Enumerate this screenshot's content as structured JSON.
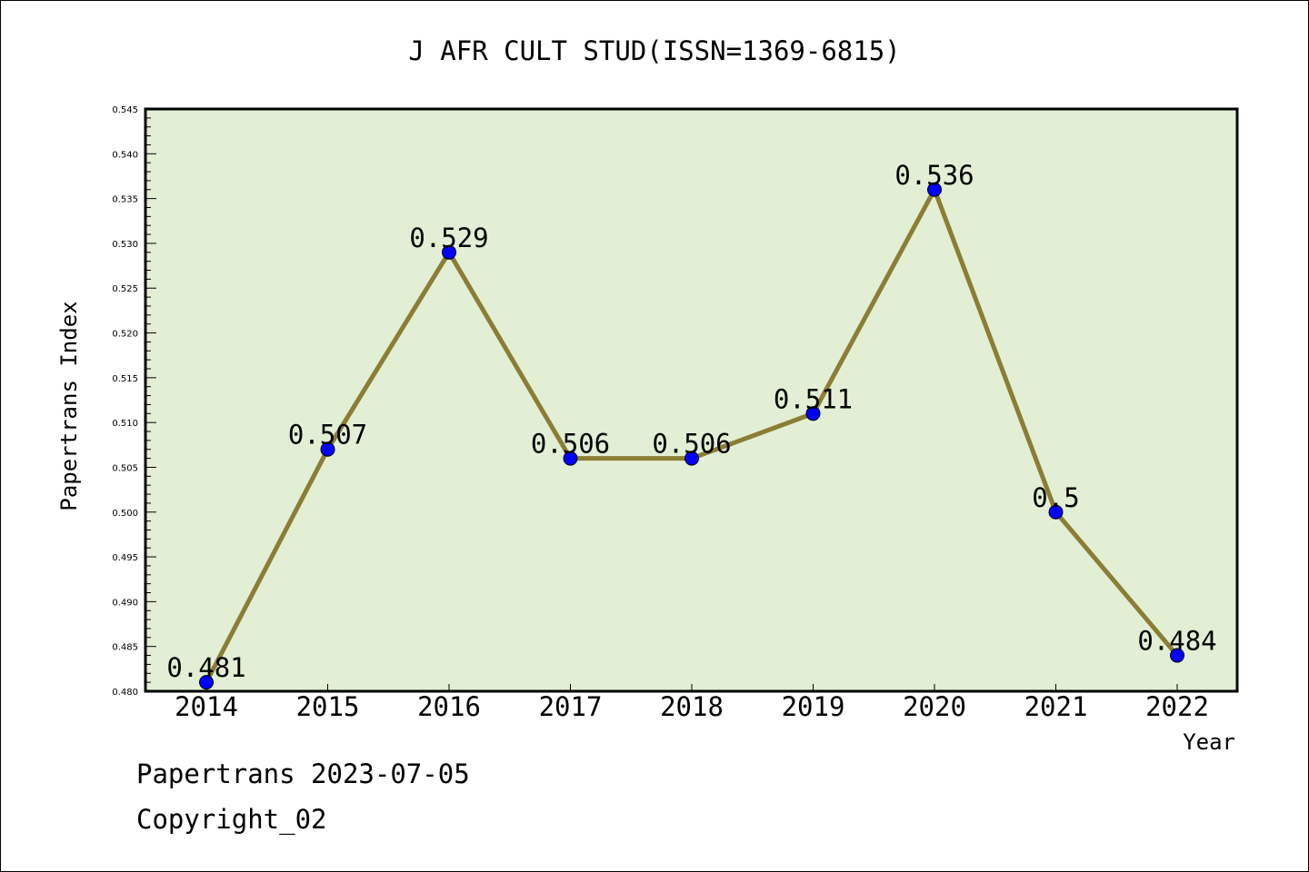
{
  "chart_data": {
    "type": "line",
    "title": "J AFR CULT STUD(ISSN=1369-6815)",
    "xlabel": "Year",
    "ylabel": "Papertrans Index",
    "categories": [
      "2014",
      "2015",
      "2016",
      "2017",
      "2018",
      "2019",
      "2020",
      "2021",
      "2022"
    ],
    "values": [
      0.481,
      0.507,
      0.529,
      0.506,
      0.506,
      0.511,
      0.536,
      0.5,
      0.484
    ],
    "data_labels": [
      "0.481",
      "0.507",
      "0.529",
      "0.506",
      "0.506",
      "0.511",
      "0.536",
      "0.5",
      "0.484"
    ],
    "ylim": [
      0.48,
      0.545
    ],
    "y_ticks": [
      "0.480",
      "0.485",
      "0.490",
      "0.495",
      "0.500",
      "0.505",
      "0.510",
      "0.515",
      "0.520",
      "0.525",
      "0.530",
      "0.535",
      "0.540",
      "0.545"
    ],
    "grid": false,
    "colors": {
      "plot_background": "#e2efd5",
      "line": "#8b7d34",
      "marker": "#0000ff"
    }
  },
  "footer": {
    "date_line": "Papertrans 2023-07-05",
    "copyright": "Copyright_02"
  }
}
